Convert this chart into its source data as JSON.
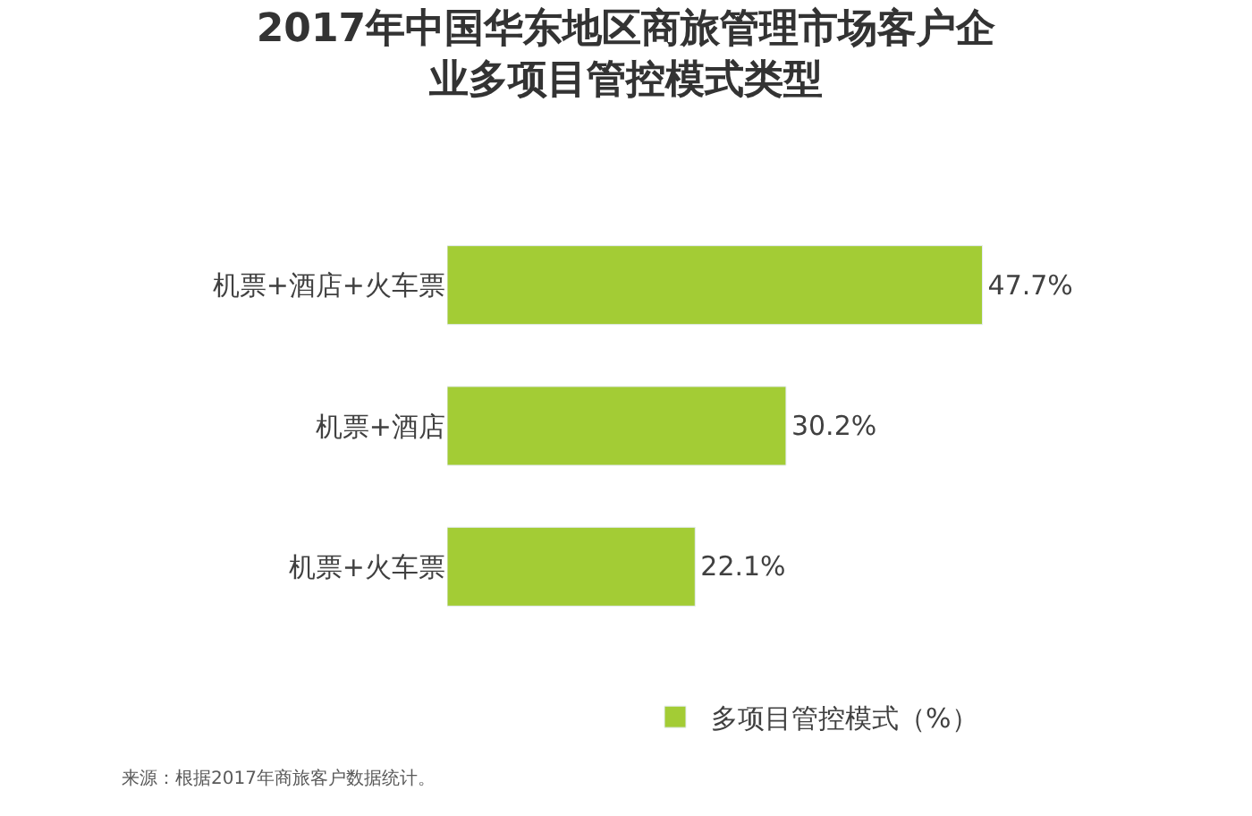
{
  "chart_data": {
    "type": "bar",
    "orientation": "horizontal",
    "title": "2017年中国华东地区商旅管理市场客户企业多项目管控模式类型",
    "categories": [
      "机票+酒店+火车票",
      "机票+酒店",
      "机票+火车票"
    ],
    "series": [
      {
        "name": "多项目管控模式（%）",
        "color": "#a3cc35",
        "values": [
          47.7,
          30.2,
          22.1
        ],
        "value_labels": [
          "47.7%",
          "30.2%",
          "22.1%"
        ]
      }
    ],
    "legend": "bottom",
    "annotations": [
      "来源：根据2017年商旅客户数据统计。"
    ]
  }
}
